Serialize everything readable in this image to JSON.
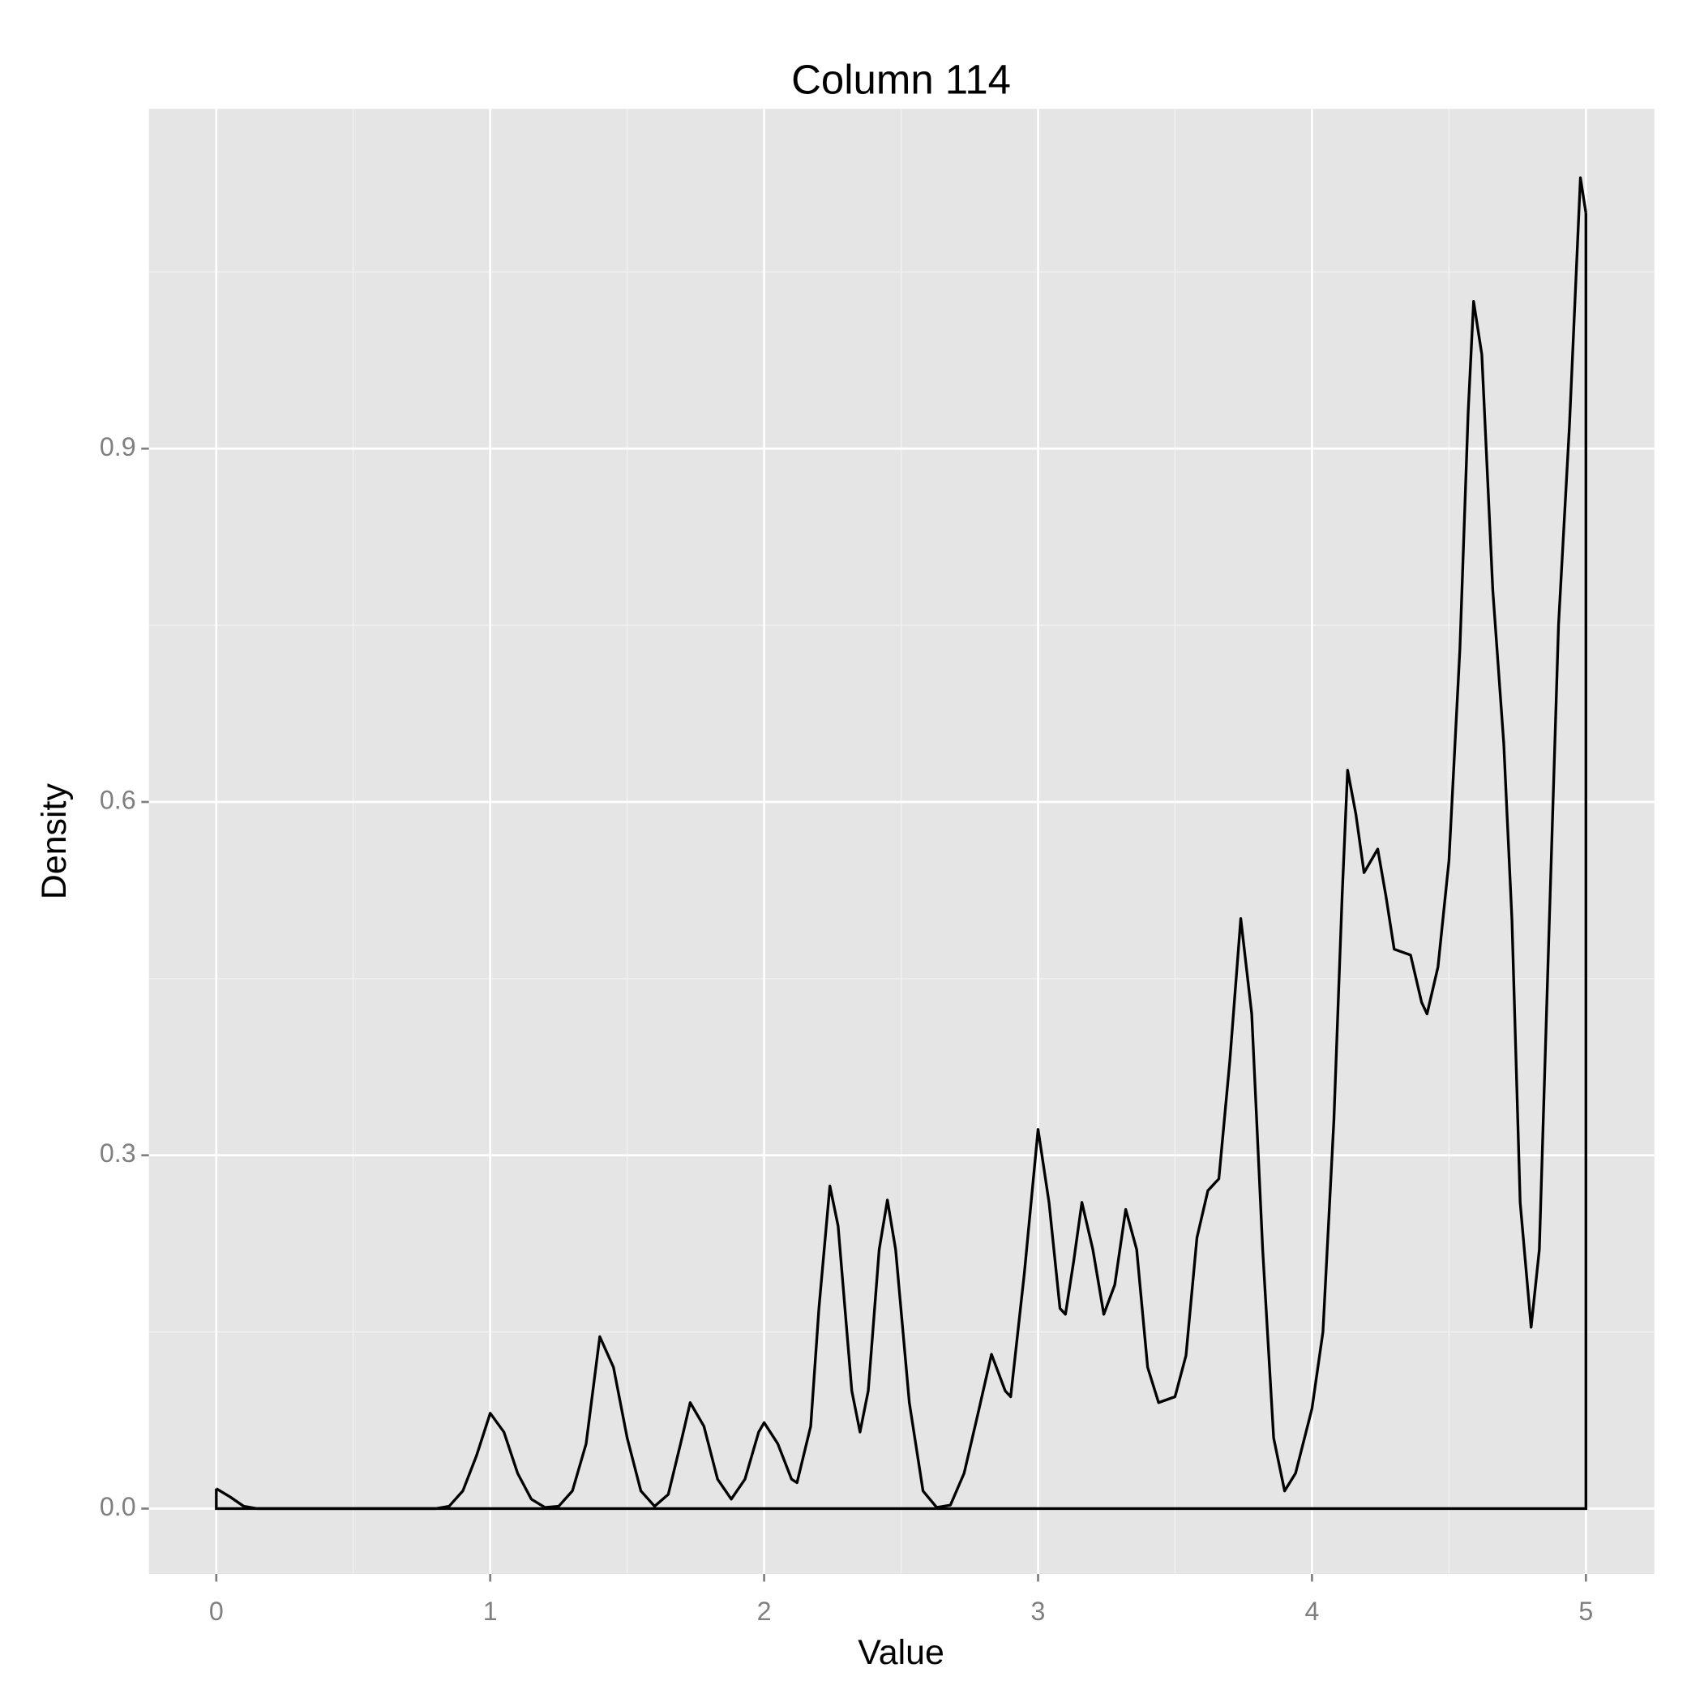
{
  "chart_data": {
    "type": "line",
    "title": "Column 114",
    "x_label": "Value",
    "y_label": "Density",
    "x": [
      0,
      0.05,
      0.1,
      0.15,
      0.8,
      0.85,
      0.9,
      0.95,
      1.0,
      1.05,
      1.1,
      1.15,
      1.2,
      1.25,
      1.3,
      1.35,
      1.4,
      1.45,
      1.5,
      1.55,
      1.6,
      1.65,
      1.7,
      1.73,
      1.78,
      1.83,
      1.88,
      1.93,
      1.98,
      2.0,
      2.05,
      2.1,
      2.12,
      2.17,
      2.2,
      2.24,
      2.27,
      2.32,
      2.35,
      2.38,
      2.42,
      2.45,
      2.48,
      2.53,
      2.58,
      2.63,
      2.68,
      2.73,
      2.78,
      2.83,
      2.88,
      2.9,
      2.95,
      3.0,
      3.04,
      3.08,
      3.1,
      3.13,
      3.16,
      3.2,
      3.24,
      3.28,
      3.32,
      3.36,
      3.4,
      3.44,
      3.5,
      3.54,
      3.58,
      3.62,
      3.66,
      3.7,
      3.74,
      3.78,
      3.82,
      3.86,
      3.9,
      3.94,
      4.0,
      4.04,
      4.08,
      4.11,
      4.13,
      4.16,
      4.19,
      4.24,
      4.27,
      4.3,
      4.36,
      4.4,
      4.42,
      4.46,
      4.5,
      4.54,
      4.57,
      4.59,
      4.62,
      4.66,
      4.7,
      4.73,
      4.76,
      4.8,
      4.83,
      4.86,
      4.9,
      4.94,
      4.98,
      5.0
    ],
    "series": [
      {
        "color": "#000000",
        "values": [
          0.017,
          0.01,
          0.002,
          0,
          0,
          0.002,
          0.015,
          0.045,
          0.081,
          0.065,
          0.03,
          0.008,
          0.001,
          0.002,
          0.015,
          0.055,
          0.146,
          0.12,
          0.06,
          0.015,
          0.002,
          0.012,
          0.06,
          0.09,
          0.07,
          0.025,
          0.008,
          0.025,
          0.065,
          0.073,
          0.055,
          0.025,
          0.022,
          0.07,
          0.17,
          0.274,
          0.24,
          0.1,
          0.065,
          0.1,
          0.22,
          0.262,
          0.22,
          0.09,
          0.015,
          0.001,
          0.003,
          0.03,
          0.08,
          0.131,
          0.1,
          0.095,
          0.2,
          0.322,
          0.26,
          0.17,
          0.165,
          0.21,
          0.26,
          0.22,
          0.165,
          0.19,
          0.254,
          0.22,
          0.12,
          0.09,
          0.095,
          0.13,
          0.23,
          0.27,
          0.28,
          0.38,
          0.501,
          0.42,
          0.22,
          0.06,
          0.015,
          0.03,
          0.085,
          0.15,
          0.33,
          0.52,
          0.627,
          0.59,
          0.54,
          0.56,
          0.52,
          0.475,
          0.47,
          0.43,
          0.42,
          0.46,
          0.55,
          0.73,
          0.93,
          1.025,
          0.98,
          0.78,
          0.65,
          0.5,
          0.26,
          0.154,
          0.22,
          0.45,
          0.75,
          0.92,
          1.13,
          1.1
        ]
      }
    ],
    "xlim": [
      -0.246,
      5.25
    ],
    "ylim": [
      -0.0555,
      1.1885
    ],
    "xticks": [
      0,
      1,
      2,
      3,
      4,
      5
    ],
    "yticks": [
      {
        "value": 0,
        "label": "0.0"
      },
      0.3,
      0.6,
      0.9
    ],
    "xminor": [
      0.5,
      1.5,
      2.5,
      3.5,
      4.5
    ],
    "yminor": [
      0.15,
      0.45,
      0.75,
      1.05
    ],
    "grid": true,
    "panel_color": "#e5e5e5"
  }
}
